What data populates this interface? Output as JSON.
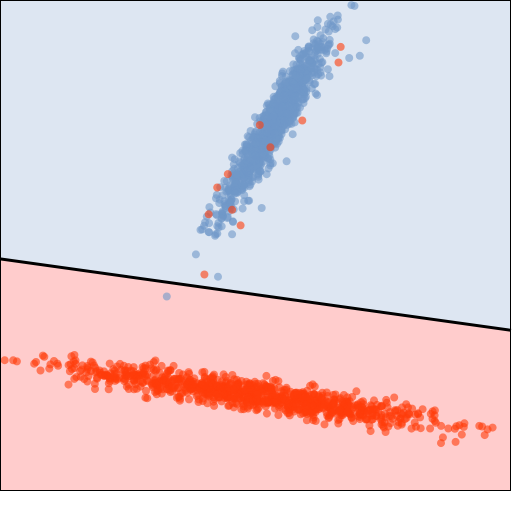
{
  "chart_data": {
    "type": "scatter",
    "title": "",
    "xlabel": "",
    "ylabel": "",
    "grid": false,
    "legend": "none",
    "xlim": [
      -6,
      6
    ],
    "ylim": [
      -5,
      6
    ],
    "regions": {
      "upper_color": "#dde6f2",
      "lower_color": "#ffcccc",
      "boundary": {
        "x": [
          -6,
          6
        ],
        "y": [
          0.2,
          -1.4
        ],
        "color": "#000000"
      }
    },
    "series": [
      {
        "color": "#6f97c8",
        "cluster": {
          "mean": [
            0.45,
            3.25
          ],
          "sd_major": 1.15,
          "sd_minor": 0.18,
          "angle_deg": 58,
          "n": 950
        },
        "points": [
          [
            2.6,
            5.1
          ],
          [
            2.45,
            4.75
          ],
          [
            2.2,
            4.7
          ],
          [
            1.7,
            4.45
          ],
          [
            0.2,
            3.25
          ],
          [
            -0.5,
            1.7
          ],
          [
            -0.85,
            1.45
          ],
          [
            -1.1,
            0.8
          ],
          [
            -1.4,
            0.3
          ],
          [
            -0.88,
            -0.2
          ],
          [
            -0.55,
            0.75
          ],
          [
            -0.8,
            1.1
          ]
        ]
      },
      {
        "color": "#ff3c0a",
        "cluster": {
          "mean": [
            0.0,
            -2.85
          ],
          "sd_major": 2.15,
          "sd_minor": 0.16,
          "angle_deg": -8,
          "n": 980
        },
        "points": [
          [
            -5.05,
            -2.3
          ],
          [
            -3.95,
            -2.2
          ],
          [
            -3.6,
            -2.4
          ],
          [
            4.1,
            -3.6
          ],
          [
            4.4,
            -3.8
          ],
          [
            4.7,
            -3.9
          ],
          [
            2.0,
            4.95
          ],
          [
            1.95,
            4.6
          ],
          [
            1.1,
            3.3
          ],
          [
            -0.9,
            1.8
          ],
          [
            -1.1,
            1.2
          ],
          [
            -0.55,
            1.3
          ],
          [
            0.1,
            3.2
          ],
          [
            -0.65,
            2.1
          ],
          [
            -1.2,
            -0.15
          ],
          [
            -0.35,
            0.95
          ],
          [
            0.35,
            2.7
          ]
        ]
      }
    ]
  }
}
